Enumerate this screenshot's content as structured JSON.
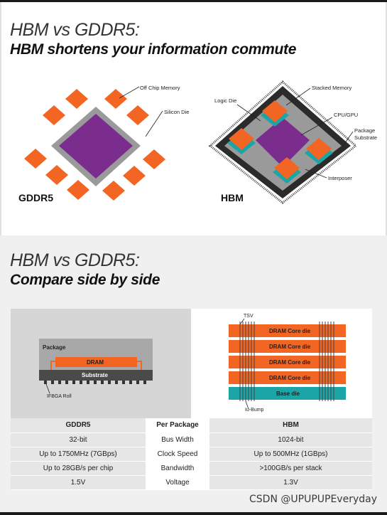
{
  "section1": {
    "title": "HBM vs GDDR5:",
    "subtitle": "HBM shortens your information commute",
    "gddr5": {
      "label": "GDDR5",
      "callouts": {
        "off_chip": "Off Chip Memory",
        "silicon_die": "Silicon Die"
      }
    },
    "hbm": {
      "label": "HBM",
      "callouts": {
        "logic_die": "Logic Die",
        "stacked_memory": "Stacked Memory",
        "cpu_gpu": "CPU/GPU",
        "package_substrate_1": "Package",
        "package_substrate_2": "Substrate",
        "interposer": "Interposer"
      }
    }
  },
  "section2": {
    "title": "HBM vs GDDR5:",
    "subtitle": "Compare side by side",
    "gddr5_diagram": {
      "package": "Package",
      "dram": "DRAM",
      "substrate": "Substrate",
      "ifbga": "IFBGA Roll"
    },
    "hbm_diagram": {
      "tsv": "TSV",
      "layers": [
        "DRAM Core die",
        "DRAM Core die",
        "DRAM Core die",
        "DRAM Core die"
      ],
      "base": "Base die",
      "ubump": "Iu-Bump"
    },
    "table": {
      "headers": [
        "GDDR5",
        "Per Package",
        "HBM"
      ],
      "rows": [
        [
          "32-bit",
          "Bus Width",
          "1024-bit"
        ],
        [
          "Up to 1750MHz (7GBps)",
          "Clock Speed",
          "Up to 500MHz (1GBps)"
        ],
        [
          "Up to 28GB/s per chip",
          "Bandwidth",
          ">100GB/s per stack"
        ],
        [
          "1.5V",
          "Voltage",
          "1.3V"
        ]
      ]
    }
  },
  "watermark": "CSDN @UPUPUPEveryday",
  "colors": {
    "orange": "#f26522",
    "purple": "#7b2d8e",
    "teal": "#1ba5a6",
    "dark": "#2b2b2b",
    "grey": "#9a9a9a"
  }
}
